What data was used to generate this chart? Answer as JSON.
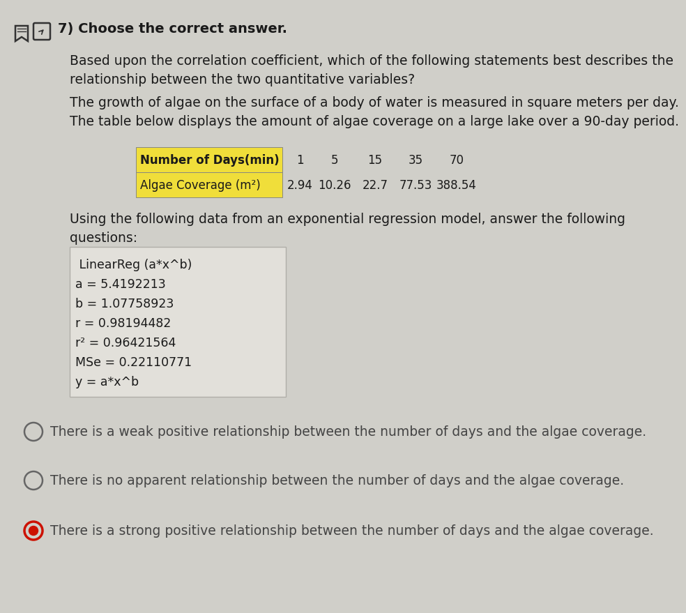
{
  "background_color": "#d0cfc9",
  "title_number": "7)",
  "title_text": "Choose the correct answer.",
  "question_text": "Based upon the correlation coefficient, which of the following statements best describes the\nrelationship between the two quantitative variables?",
  "context_text": "The growth of algae on the surface of a body of water is measured in square meters per day.\nThe table below displays the amount of algae coverage on a large lake over a 90-day period.",
  "table_label1": "Number of Days(min)",
  "table_label2": "Algae Coverage (m²)",
  "table_days": [
    "1",
    "5",
    "15",
    "35",
    "70"
  ],
  "table_algae": [
    "2.94",
    "10.26",
    "22.7",
    "77.53",
    "388.54"
  ],
  "table_yellow_bg": "#f0de3a",
  "using_text": "Using the following data from an exponential regression model, answer the following\nquestions:",
  "reg_line1": " LinearReg (a*x^b)",
  "reg_line2": "a = 5.4192213",
  "reg_line3": "b = 1.07758923",
  "reg_line4": "r = 0.98194482",
  "reg_line5": "r² = 0.96421564",
  "reg_line6": "MSe = 0.22110771",
  "reg_line7": "y = a*x^b",
  "reg_box_bg": "#e2e0da",
  "reg_box_border": "#b0aea8",
  "answers": [
    "There is a weak positive relationship between the number of days and the algae coverage.",
    "There is no apparent relationship between the number of days and the algae coverage.",
    "There is a strong positive relationship between the number of days and the algae coverage."
  ],
  "answer_selected": 2,
  "text_color": "#1a1a1a",
  "answer_text_color": "#444444",
  "radio_unselected_color": "#666666",
  "radio_selected_outer": "#cc1100",
  "radio_selected_inner": "#cc1100"
}
